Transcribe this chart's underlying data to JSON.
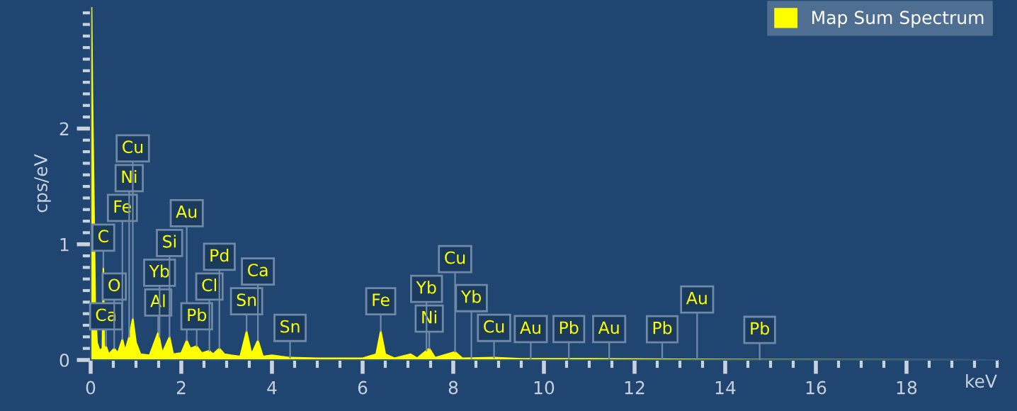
{
  "chart_data": {
    "type": "area",
    "xlabel": "keV",
    "ylabel": "cps/eV",
    "xlim": [
      0,
      20
    ],
    "xticks": [
      0,
      2,
      4,
      6,
      8,
      10,
      12,
      14,
      16,
      18
    ],
    "ylim": [
      0,
      3.05
    ],
    "yticks": [
      0,
      1,
      2
    ],
    "grid": false,
    "legend": "top right",
    "series": [
      {
        "name": "Map Sum Spectrum",
        "color": "#ffff00",
        "x": [
          0,
          0.01,
          0.02,
          0.04,
          0.07,
          0.1,
          0.14,
          0.2,
          0.26,
          0.28,
          0.3,
          0.34,
          0.4,
          0.52,
          0.6,
          0.7,
          0.76,
          0.85,
          0.93,
          1.0,
          1.1,
          1.3,
          1.49,
          1.58,
          1.74,
          1.82,
          2.0,
          2.12,
          2.2,
          2.34,
          2.45,
          2.62,
          2.7,
          2.84,
          2.95,
          3.1,
          3.3,
          3.44,
          3.55,
          3.69,
          3.8,
          4.0,
          4.4,
          5.0,
          6.0,
          6.3,
          6.4,
          6.5,
          6.7,
          7.06,
          7.2,
          7.47,
          7.6,
          8.04,
          8.2,
          8.9,
          9.5,
          11,
          13,
          15,
          20
        ],
        "values": [
          0,
          1.4,
          3.05,
          2.25,
          1.4,
          0.5,
          0.15,
          0.08,
          0.1,
          0.8,
          0.1,
          0.12,
          0.05,
          0.1,
          0.06,
          0.18,
          0.08,
          0.2,
          0.36,
          0.15,
          0.05,
          0.04,
          0.24,
          0.06,
          0.2,
          0.05,
          0.06,
          0.17,
          0.1,
          0.12,
          0.06,
          0.08,
          0.05,
          0.1,
          0.05,
          0.04,
          0.03,
          0.25,
          0.05,
          0.17,
          0.03,
          0.04,
          0.02,
          0.015,
          0.015,
          0.05,
          0.25,
          0.05,
          0.015,
          0.05,
          0.015,
          0.1,
          0.02,
          0.07,
          0.015,
          0.02,
          0.01,
          0.01,
          0.005,
          0.003,
          0
        ]
      }
    ],
    "annotations": [
      {
        "text": "Ca",
        "x": 0.34,
        "y": 0.12
      },
      {
        "text": "C",
        "x": 0.28,
        "y": 0.8
      },
      {
        "text": "O",
        "x": 0.52,
        "y": 0.1
      },
      {
        "text": "Fe",
        "x": 0.7,
        "y": 0.18
      },
      {
        "text": "Ni",
        "x": 0.85,
        "y": 0.2
      },
      {
        "text": "Cu",
        "x": 0.93,
        "y": 0.36
      },
      {
        "text": "Al",
        "x": 1.49,
        "y": 0.24
      },
      {
        "text": "Yb",
        "x": 1.52,
        "y": 0.2
      },
      {
        "text": "Si",
        "x": 1.74,
        "y": 0.2
      },
      {
        "text": "Au",
        "x": 2.12,
        "y": 0.17
      },
      {
        "text": "Pb",
        "x": 2.34,
        "y": 0.12
      },
      {
        "text": "Cl",
        "x": 2.62,
        "y": 0.08
      },
      {
        "text": "Pd",
        "x": 2.84,
        "y": 0.1
      },
      {
        "text": "Sn",
        "x": 3.44,
        "y": 0.25
      },
      {
        "text": "Ca",
        "x": 3.69,
        "y": 0.17
      },
      {
        "text": "Sn",
        "x": 4.4,
        "y": 0.02
      },
      {
        "text": "Fe",
        "x": 6.4,
        "y": 0.25
      },
      {
        "text": "Ni",
        "x": 7.47,
        "y": 0.1
      },
      {
        "text": "Yb",
        "x": 7.41,
        "y": 0.08
      },
      {
        "text": "Cu",
        "x": 8.04,
        "y": 0.07
      },
      {
        "text": "Cu",
        "x": 8.9,
        "y": 0.02
      },
      {
        "text": "Yb",
        "x": 8.4,
        "y": 0.015
      },
      {
        "text": "Au",
        "x": 9.71,
        "y": 0.01
      },
      {
        "text": "Pb",
        "x": 10.55,
        "y": 0.01
      },
      {
        "text": "Au",
        "x": 11.44,
        "y": 0.01
      },
      {
        "text": "Pb",
        "x": 12.61,
        "y": 0.008
      },
      {
        "text": "Au",
        "x": 13.38,
        "y": 0.006
      },
      {
        "text": "Pb",
        "x": 14.76,
        "y": 0.003
      }
    ]
  }
}
